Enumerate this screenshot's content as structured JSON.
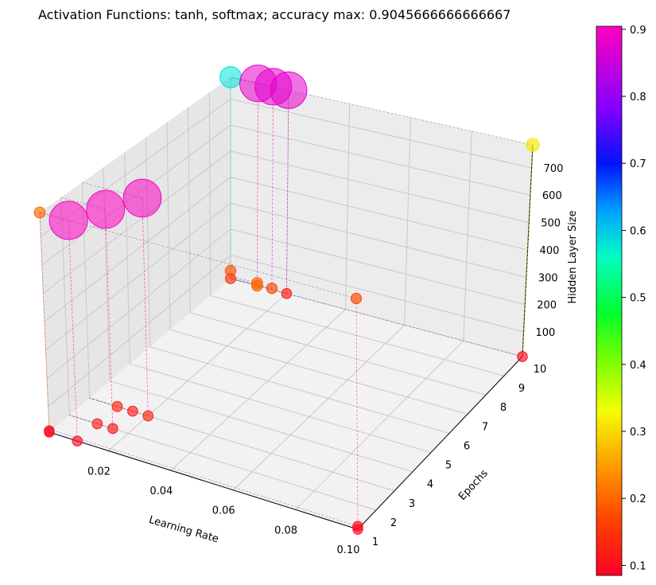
{
  "chart_data": {
    "type": "scatter",
    "title": "Activation Functions: tanh, softmax; accuracy max: 0.9045666666666667",
    "xlabel": "Learning Rate",
    "ylabel": "Epochs",
    "zlabel": "Hidden Layer Size",
    "xlim": [
      0.001,
      0.1
    ],
    "ylim": [
      1,
      10
    ],
    "zlim": [
      10,
      784
    ],
    "xticks": [
      "0.02",
      "0.04",
      "0.06",
      "0.08",
      "0.10"
    ],
    "yticks": [
      "1",
      "2",
      "3",
      "4",
      "5",
      "6",
      "7",
      "8",
      "9",
      "10"
    ],
    "zticks": [
      "100",
      "200",
      "300",
      "400",
      "500",
      "600",
      "700"
    ],
    "colorbar": {
      "colormap": "gist_rainbow",
      "range": [
        0.085,
        0.9046
      ],
      "ticks": [
        "0.1",
        "0.2",
        "0.3",
        "0.4",
        "0.5",
        "0.6",
        "0.7",
        "0.8",
        "0.9"
      ]
    },
    "encoding": {
      "color": "accuracy",
      "marker_size": "accuracy"
    },
    "points": [
      {
        "lr": 0.001,
        "epochs": 1,
        "hidden": 784,
        "accuracy": 0.2
      },
      {
        "lr": 0.001,
        "epochs": 1,
        "hidden": 10,
        "accuracy": 0.095
      },
      {
        "lr": 0.001,
        "epochs": 1,
        "hidden": 15,
        "accuracy": 0.1
      },
      {
        "lr": 0.01,
        "epochs": 1,
        "hidden": 784,
        "accuracy": 0.9045
      },
      {
        "lr": 0.015,
        "epochs": 2,
        "hidden": 784,
        "accuracy": 0.903
      },
      {
        "lr": 0.02,
        "epochs": 3,
        "hidden": 784,
        "accuracy": 0.9
      },
      {
        "lr": 0.001,
        "epochs": 10,
        "hidden": 784,
        "accuracy": 0.58
      },
      {
        "lr": 0.01,
        "epochs": 10,
        "hidden": 784,
        "accuracy": 0.88
      },
      {
        "lr": 0.015,
        "epochs": 10,
        "hidden": 784,
        "accuracy": 0.88
      },
      {
        "lr": 0.02,
        "epochs": 10,
        "hidden": 784,
        "accuracy": 0.88
      },
      {
        "lr": 0.1,
        "epochs": 10,
        "hidden": 784,
        "accuracy": 0.31
      },
      {
        "lr": 0.1,
        "epochs": 1,
        "hidden": 784,
        "accuracy": 0.17
      },
      {
        "lr": 0.01,
        "epochs": 1,
        "hidden": 10,
        "accuracy": 0.1
      },
      {
        "lr": 0.01,
        "epochs": 2,
        "hidden": 10,
        "accuracy": 0.12
      },
      {
        "lr": 0.01,
        "epochs": 3,
        "hidden": 10,
        "accuracy": 0.13
      },
      {
        "lr": 0.015,
        "epochs": 2,
        "hidden": 10,
        "accuracy": 0.11
      },
      {
        "lr": 0.015,
        "epochs": 3,
        "hidden": 10,
        "accuracy": 0.12
      },
      {
        "lr": 0.02,
        "epochs": 3,
        "hidden": 10,
        "accuracy": 0.13
      },
      {
        "lr": 0.001,
        "epochs": 10,
        "hidden": 10,
        "accuracy": 0.14
      },
      {
        "lr": 0.001,
        "epochs": 10,
        "hidden": 40,
        "accuracy": 0.18
      },
      {
        "lr": 0.01,
        "epochs": 10,
        "hidden": 10,
        "accuracy": 0.19
      },
      {
        "lr": 0.01,
        "epochs": 10,
        "hidden": 20,
        "accuracy": 0.2
      },
      {
        "lr": 0.015,
        "epochs": 10,
        "hidden": 15,
        "accuracy": 0.17
      },
      {
        "lr": 0.02,
        "epochs": 10,
        "hidden": 10,
        "accuracy": 0.12
      },
      {
        "lr": 0.1,
        "epochs": 10,
        "hidden": 10,
        "accuracy": 0.1
      },
      {
        "lr": 0.1,
        "epochs": 1,
        "hidden": 10,
        "accuracy": 0.095
      },
      {
        "lr": 0.1,
        "epochs": 1,
        "hidden": 20,
        "accuracy": 0.1
      }
    ]
  }
}
